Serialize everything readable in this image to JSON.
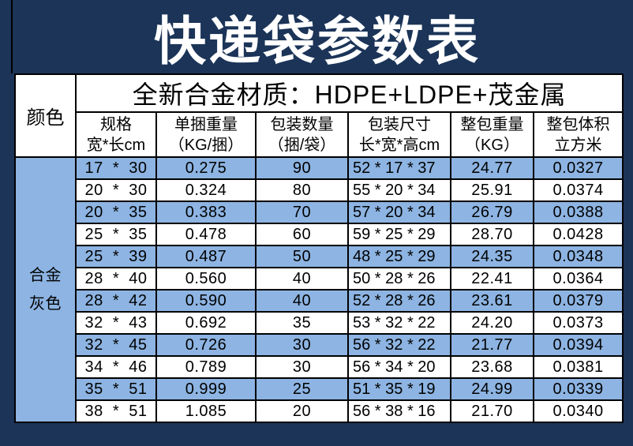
{
  "title": "快递袋参数表",
  "colors": {
    "background": "#1B3458",
    "row_blue": "#8DB4E2",
    "row_white": "#FFFFFF",
    "border": "#000000",
    "title_text": "#FFFFFF",
    "body_text": "#000000"
  },
  "table": {
    "color_header": "颜色",
    "material_header": "全新合金材质：HDPE+LDPE+茂金属",
    "color_group": {
      "line1": "合金",
      "line2": "灰色"
    },
    "columns": [
      {
        "line1": "规格",
        "line2": "宽*长cm"
      },
      {
        "line1": "单捆重量",
        "line2": "（KG/捆）"
      },
      {
        "line1": "包装数量",
        "line2": "（捆/袋）"
      },
      {
        "line1": "包装尺寸",
        "line2": "长*宽*高cm"
      },
      {
        "line1": "整包重量",
        "line2": "（KG）"
      },
      {
        "line1": "整包体积",
        "line2": "立方米"
      }
    ],
    "rows": [
      {
        "spec": "17  *  30",
        "bundle_weight": "0.275",
        "pack_qty": "90",
        "pack_size": "52 * 17 * 37",
        "total_weight": "24.77",
        "total_volume": "0.0327"
      },
      {
        "spec": "20  *  30",
        "bundle_weight": "0.324",
        "pack_qty": "80",
        "pack_size": "55 * 20 * 34",
        "total_weight": "25.91",
        "total_volume": "0.0374"
      },
      {
        "spec": "20  *  35",
        "bundle_weight": "0.383",
        "pack_qty": "70",
        "pack_size": "57 * 20 * 34",
        "total_weight": "26.79",
        "total_volume": "0.0388"
      },
      {
        "spec": "25  *  35",
        "bundle_weight": "0.478",
        "pack_qty": "60",
        "pack_size": "59 * 25 * 29",
        "total_weight": "28.70",
        "total_volume": "0.0428"
      },
      {
        "spec": "25  *  39",
        "bundle_weight": "0.487",
        "pack_qty": "50",
        "pack_size": "48 * 25 * 29",
        "total_weight": "24.35",
        "total_volume": "0.0348"
      },
      {
        "spec": "28  *  40",
        "bundle_weight": "0.560",
        "pack_qty": "40",
        "pack_size": "50 * 28 * 26",
        "total_weight": "22.41",
        "total_volume": "0.0364"
      },
      {
        "spec": "28  *  42",
        "bundle_weight": "0.590",
        "pack_qty": "40",
        "pack_size": "52 * 28 * 26",
        "total_weight": "23.61",
        "total_volume": "0.0379"
      },
      {
        "spec": "32  *  43",
        "bundle_weight": "0.692",
        "pack_qty": "35",
        "pack_size": "53 * 32 * 22",
        "total_weight": "24.20",
        "total_volume": "0.0373"
      },
      {
        "spec": "32  *  45",
        "bundle_weight": "0.726",
        "pack_qty": "30",
        "pack_size": "56 * 32 * 22",
        "total_weight": "21.77",
        "total_volume": "0.0394"
      },
      {
        "spec": "34  *  46",
        "bundle_weight": "0.789",
        "pack_qty": "30",
        "pack_size": "56 * 34 * 20",
        "total_weight": "23.68",
        "total_volume": "0.0381"
      },
      {
        "spec": "35  *  51",
        "bundle_weight": "0.999",
        "pack_qty": "25",
        "pack_size": "51 * 35 * 19",
        "total_weight": "24.99",
        "total_volume": "0.0339"
      },
      {
        "spec": "38  *  51",
        "bundle_weight": "1.085",
        "pack_qty": "20",
        "pack_size": "56 * 38 * 16",
        "total_weight": "21.70",
        "total_volume": "0.0340"
      }
    ]
  }
}
